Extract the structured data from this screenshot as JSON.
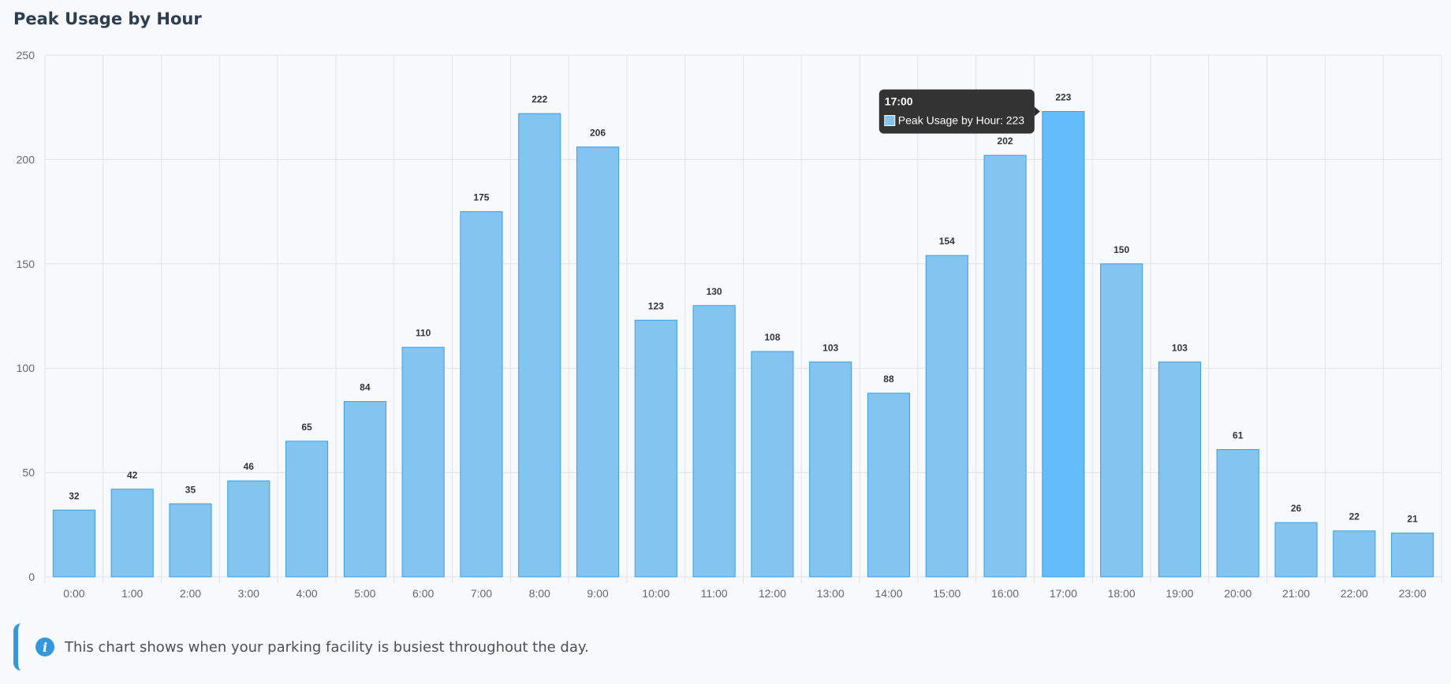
{
  "page": {
    "title": "Peak Usage by Hour",
    "info_text": "This chart shows when your parking facility is busiest throughout the day."
  },
  "colors": {
    "bar_fill": "#83c4f0",
    "bar_stroke": "#3a9ee4",
    "bar_highlight": "#63bdfb",
    "grid": "#e1e3e8",
    "tooltip_bg": "#2b2b2b",
    "accent": "#3498db"
  },
  "tooltip": {
    "title": "17:00",
    "label": "Peak Usage by Hour: 223",
    "index": 17
  },
  "chart_data": {
    "type": "bar",
    "title": "",
    "xlabel": "",
    "ylabel": "",
    "ylim": [
      0,
      250
    ],
    "yticks": [
      0,
      50,
      100,
      150,
      200,
      250
    ],
    "grid": true,
    "data_labels": true,
    "categories": [
      "0:00",
      "1:00",
      "2:00",
      "3:00",
      "4:00",
      "5:00",
      "6:00",
      "7:00",
      "8:00",
      "9:00",
      "10:00",
      "11:00",
      "12:00",
      "13:00",
      "14:00",
      "15:00",
      "16:00",
      "17:00",
      "18:00",
      "19:00",
      "20:00",
      "21:00",
      "22:00",
      "23:00"
    ],
    "series": [
      {
        "name": "Peak Usage by Hour",
        "values": [
          32,
          42,
          35,
          46,
          65,
          84,
          110,
          175,
          222,
          206,
          123,
          130,
          108,
          103,
          88,
          154,
          202,
          223,
          150,
          103,
          61,
          26,
          22,
          21
        ]
      }
    ]
  }
}
